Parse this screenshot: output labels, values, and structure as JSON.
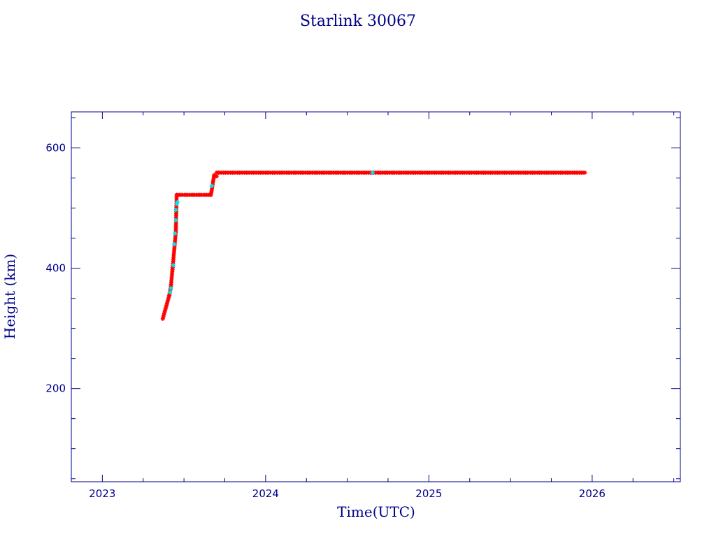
{
  "chart_data": {
    "type": "scatter",
    "title": "Starlink 30067",
    "xlabel": "Time(UTC)",
    "ylabel": "Height (km)",
    "xlim": [
      2022.81,
      2026.54
    ],
    "ylim": [
      45,
      660
    ],
    "x_ticks_major": [
      2023,
      2024,
      2025,
      2026
    ],
    "x_tick_labels": [
      "2023",
      "2024",
      "2025",
      "2026"
    ],
    "x_ticks_minor_step": 0.25,
    "y_ticks_major": [
      200,
      400,
      600
    ],
    "y_tick_labels": [
      "200",
      "400",
      "600"
    ],
    "y_ticks_minor_step": 50,
    "grid": false,
    "colors": {
      "frame": "#00008b",
      "text": "#00008b",
      "primary": "#ff0000",
      "secondary": "#00e5ee"
    },
    "series": [
      {
        "color": "#ff0000",
        "segments": [
          {
            "kind": "ramp",
            "x": [
              2023.37,
              2023.41,
              2023.42,
              2023.45,
              2023.455
            ],
            "y": [
              316,
              355,
              370,
              460,
              522
            ]
          },
          {
            "kind": "plateau",
            "x": [
              2023.46,
              2023.66
            ],
            "y": 522
          },
          {
            "kind": "ramp",
            "x": [
              2023.665,
              2023.685
            ],
            "y": [
              522,
              555
            ]
          },
          {
            "kind": "plateau",
            "x": [
              2023.685,
              2023.7
            ],
            "y": 553
          },
          {
            "kind": "plateau",
            "x": [
              2023.7,
              2025.955
            ],
            "y": 559
          }
        ]
      },
      {
        "color": "#00e5ee",
        "points": [
          [
            2023.415,
            360
          ],
          [
            2023.42,
            367
          ],
          [
            2023.435,
            405
          ],
          [
            2023.44,
            440
          ],
          [
            2023.445,
            458
          ],
          [
            2023.45,
            480
          ],
          [
            2023.45,
            497
          ],
          [
            2023.455,
            507
          ],
          [
            2023.46,
            510
          ],
          [
            2023.67,
            537
          ],
          [
            2024.655,
            559
          ]
        ]
      }
    ]
  }
}
